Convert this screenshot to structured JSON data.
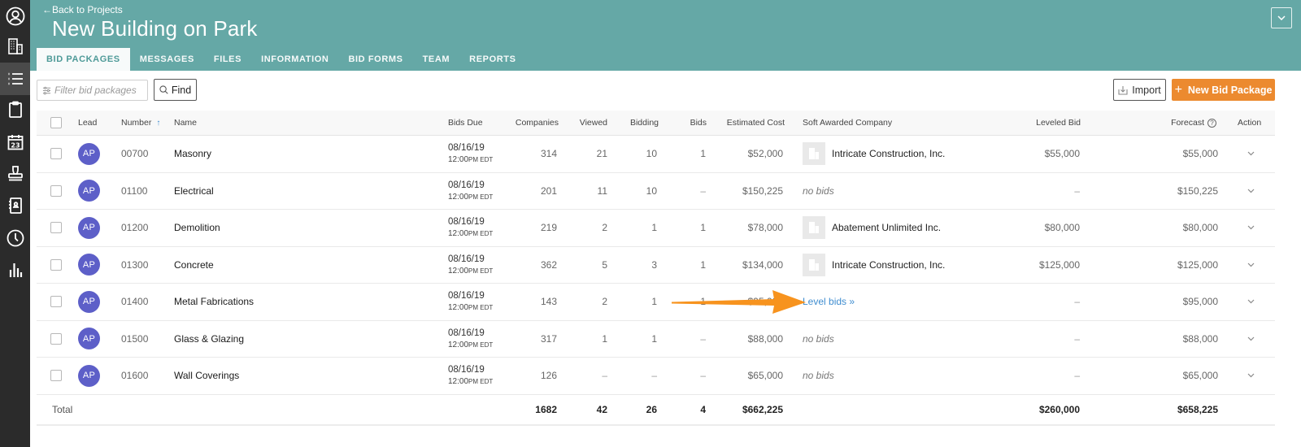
{
  "sidebar": {
    "items": [
      {
        "name": "profile",
        "icon": "user-circle-icon",
        "active": false
      },
      {
        "name": "companies",
        "icon": "building-icon",
        "active": false
      },
      {
        "name": "bid-list",
        "icon": "list-icon",
        "active": true
      },
      {
        "name": "clipboard",
        "icon": "clipboard-icon",
        "active": false
      },
      {
        "name": "calendar",
        "icon": "calendar-icon",
        "active": false,
        "badge": "23"
      },
      {
        "name": "stamp",
        "icon": "stamp-icon",
        "active": false
      },
      {
        "name": "contacts",
        "icon": "address-book-icon",
        "active": false
      },
      {
        "name": "history",
        "icon": "clock-icon",
        "active": false
      },
      {
        "name": "reports",
        "icon": "bar-chart-icon",
        "active": false
      }
    ]
  },
  "header": {
    "back_label": "←Back to Projects",
    "title": "New Building on Park",
    "tabs": [
      {
        "label": "BID PACKAGES",
        "active": true
      },
      {
        "label": "MESSAGES",
        "active": false
      },
      {
        "label": "FILES",
        "active": false
      },
      {
        "label": "INFORMATION",
        "active": false
      },
      {
        "label": "BID FORMS",
        "active": false
      },
      {
        "label": "TEAM",
        "active": false
      },
      {
        "label": "REPORTS",
        "active": false
      }
    ]
  },
  "toolbar": {
    "filter_placeholder": "Filter bid packages",
    "filter_value": "",
    "find_label": "Find",
    "import_label": "Import",
    "new_label": "New Bid Package",
    "new_plus": "+"
  },
  "colors": {
    "header_bg": "#65a8a6",
    "accent_orange": "#ec8a2f",
    "avatar_bg": "#5d5fc8",
    "link_blue": "#3f8dd0",
    "sidebar_bg": "#2b2b2b"
  },
  "table": {
    "columns": {
      "lead": "Lead",
      "number": "Number",
      "number_sort": "↑",
      "name": "Name",
      "bids_due": "Bids Due",
      "companies": "Companies",
      "viewed": "Viewed",
      "bidding": "Bidding",
      "bids": "Bids",
      "estimated_cost": "Estimated Cost",
      "soft_awarded": "Soft Awarded Company",
      "leveled_bid": "Leveled Bid",
      "forecast": "Forecast",
      "forecast_help": "?",
      "action": "Action"
    },
    "rows": [
      {
        "lead": "AP",
        "number": "00700",
        "name": "Masonry",
        "due_date": "08/16/19",
        "due_time": "12:00",
        "due_ampm": "PM EDT",
        "companies": "314",
        "viewed": "21",
        "bidding": "10",
        "bids": "1",
        "estimated_cost": "$52,000",
        "soft_awarded": "Intricate Construction, Inc.",
        "soft_type": "company",
        "leveled_bid": "$55,000",
        "forecast": "$55,000"
      },
      {
        "lead": "AP",
        "number": "01100",
        "name": "Electrical",
        "due_date": "08/16/19",
        "due_time": "12:00",
        "due_ampm": "PM EDT",
        "companies": "201",
        "viewed": "11",
        "bidding": "10",
        "bids": "–",
        "estimated_cost": "$150,225",
        "soft_awarded": "no bids",
        "soft_type": "none",
        "leveled_bid": "–",
        "forecast": "$150,225"
      },
      {
        "lead": "AP",
        "number": "01200",
        "name": "Demolition",
        "due_date": "08/16/19",
        "due_time": "12:00",
        "due_ampm": "PM EDT",
        "companies": "219",
        "viewed": "2",
        "bidding": "1",
        "bids": "1",
        "estimated_cost": "$78,000",
        "soft_awarded": "Abatement Unlimited Inc.",
        "soft_type": "company",
        "leveled_bid": "$80,000",
        "forecast": "$80,000"
      },
      {
        "lead": "AP",
        "number": "01300",
        "name": "Concrete",
        "due_date": "08/16/19",
        "due_time": "12:00",
        "due_ampm": "PM EDT",
        "companies": "362",
        "viewed": "5",
        "bidding": "3",
        "bids": "1",
        "estimated_cost": "$134,000",
        "soft_awarded": "Intricate Construction, Inc.",
        "soft_type": "company",
        "leveled_bid": "$125,000",
        "forecast": "$125,000"
      },
      {
        "lead": "AP",
        "number": "01400",
        "name": "Metal Fabrications",
        "due_date": "08/16/19",
        "due_time": "12:00",
        "due_ampm": "PM EDT",
        "companies": "143",
        "viewed": "2",
        "bidding": "1",
        "bids": "1",
        "estimated_cost": "$95,000",
        "soft_awarded": "Level bids »",
        "soft_type": "link",
        "leveled_bid": "–",
        "forecast": "$95,000"
      },
      {
        "lead": "AP",
        "number": "01500",
        "name": "Glass & Glazing",
        "due_date": "08/16/19",
        "due_time": "12:00",
        "due_ampm": "PM EDT",
        "companies": "317",
        "viewed": "1",
        "bidding": "1",
        "bids": "–",
        "estimated_cost": "$88,000",
        "soft_awarded": "no bids",
        "soft_type": "none",
        "leveled_bid": "–",
        "forecast": "$88,000"
      },
      {
        "lead": "AP",
        "number": "01600",
        "name": "Wall Coverings",
        "due_date": "08/16/19",
        "due_time": "12:00",
        "due_ampm": "PM EDT",
        "companies": "126",
        "viewed": "–",
        "bidding": "–",
        "bids": "–",
        "estimated_cost": "$65,000",
        "soft_awarded": "no bids",
        "soft_type": "none",
        "leveled_bid": "–",
        "forecast": "$65,000"
      }
    ],
    "total": {
      "label": "Total",
      "companies": "1682",
      "viewed": "42",
      "bidding": "26",
      "bids": "4",
      "estimated_cost": "$662,225",
      "leveled_bid": "$260,000",
      "forecast": "$658,225"
    }
  },
  "annotation": {
    "arrow_color": "#f7931e",
    "points_to": "Level bids »"
  }
}
